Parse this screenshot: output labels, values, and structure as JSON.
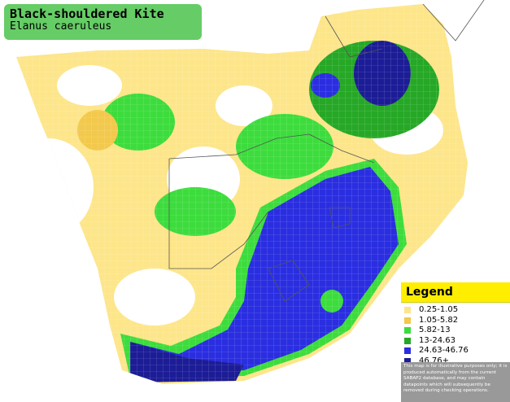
{
  "header": {
    "title": "Black-shouldered Kite",
    "subtitle": "Elanus caeruleus"
  },
  "legend": {
    "title": "Legend",
    "items": [
      {
        "label": "0.25-1.05",
        "color": "#fde58a"
      },
      {
        "label": "1.05-5.82",
        "color": "#f2c94c"
      },
      {
        "label": "5.82-13",
        "color": "#3ddc3d"
      },
      {
        "label": "13-24.63",
        "color": "#26a826"
      },
      {
        "label": "24.63-46.76",
        "color": "#2a2ee0"
      },
      {
        "label": "46.76+",
        "color": "#1c1c96"
      }
    ],
    "disclaimer": "This map is for illustrative purposes only; it is produced automatically from the current SABAP2 database, and may contain datapoints which will subsequently be removed during checking operations."
  }
}
